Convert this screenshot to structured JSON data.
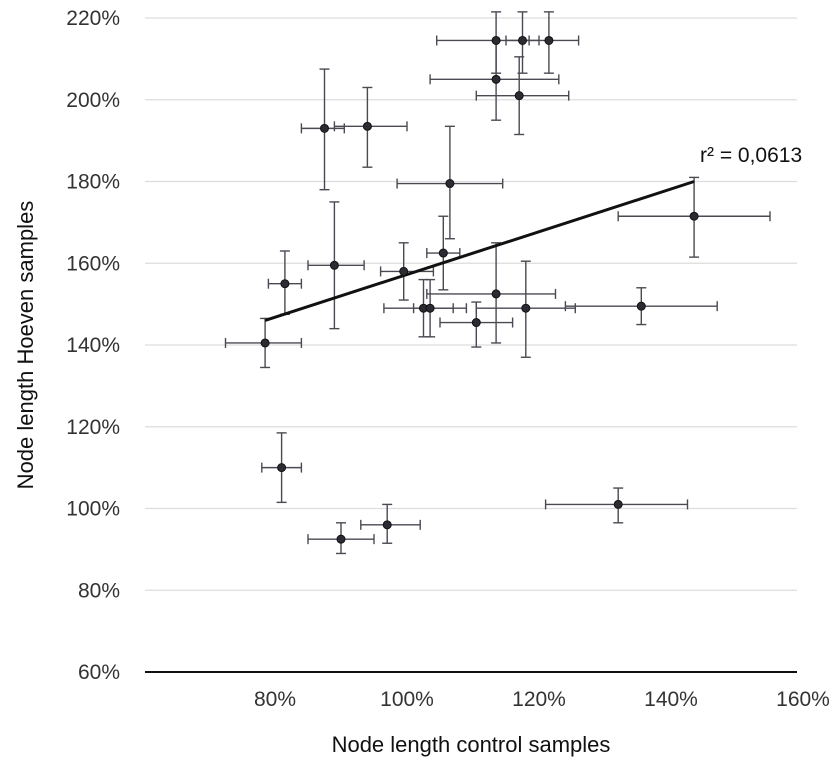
{
  "chart_data": {
    "type": "scatter",
    "title": "",
    "xlabel": "Node length control samples",
    "ylabel": "Node length Hoeven samples",
    "xlim": [
      60,
      160
    ],
    "ylim": [
      60,
      220
    ],
    "x_ticks": [
      {
        "value": 80,
        "label": "80%"
      },
      {
        "value": 100,
        "label": "100%"
      },
      {
        "value": 120,
        "label": "120%"
      },
      {
        "value": 140,
        "label": "140%"
      },
      {
        "value": 160,
        "label": "160%"
      }
    ],
    "y_ticks": [
      {
        "value": 60,
        "label": "60%"
      },
      {
        "value": 80,
        "label": "80%"
      },
      {
        "value": 100,
        "label": "100%"
      },
      {
        "value": 120,
        "label": "120%"
      },
      {
        "value": 140,
        "label": "140%"
      },
      {
        "value": 160,
        "label": "160%"
      },
      {
        "value": 180,
        "label": "180%"
      },
      {
        "value": 200,
        "label": "200%"
      },
      {
        "value": 220,
        "label": "220%"
      }
    ],
    "grid": "horizontal",
    "points": [
      {
        "x": 113.5,
        "y": 214.5,
        "xerr": [
          104.5,
          118.5
        ],
        "yerr": [
          206.5,
          221.5
        ]
      },
      {
        "x": 117.5,
        "y": 214.5,
        "xerr": [
          115,
          120
        ],
        "yerr": [
          206.5,
          221.5
        ]
      },
      {
        "x": 121.5,
        "y": 214.5,
        "xerr": [
          117.5,
          126
        ],
        "yerr": [
          206.5,
          221.5
        ]
      },
      {
        "x": 113.5,
        "y": 205,
        "xerr": [
          103.5,
          123
        ],
        "yerr": [
          195,
          214.5
        ]
      },
      {
        "x": 117,
        "y": 201,
        "xerr": [
          110.5,
          124.5
        ],
        "yerr": [
          191.5,
          210.5
        ]
      },
      {
        "x": 87.5,
        "y": 193,
        "xerr": [
          84,
          90.5
        ],
        "yerr": [
          178,
          207.5
        ]
      },
      {
        "x": 94,
        "y": 193.5,
        "xerr": [
          89,
          100
        ],
        "yerr": [
          183.5,
          203
        ]
      },
      {
        "x": 106.5,
        "y": 179.5,
        "xerr": [
          98.5,
          114.5
        ],
        "yerr": [
          166,
          193.5
        ]
      },
      {
        "x": 143.5,
        "y": 171.5,
        "xerr": [
          132,
          155
        ],
        "yerr": [
          161.5,
          181
        ]
      },
      {
        "x": 105.5,
        "y": 162.5,
        "xerr": [
          103,
          108
        ],
        "yerr": [
          153.5,
          171.5
        ]
      },
      {
        "x": 89,
        "y": 159.5,
        "xerr": [
          85,
          93.5
        ],
        "yerr": [
          144,
          175
        ]
      },
      {
        "x": 99.5,
        "y": 158,
        "xerr": [
          96,
          104
        ],
        "yerr": [
          151,
          165
        ]
      },
      {
        "x": 81.5,
        "y": 155,
        "xerr": [
          79,
          84
        ],
        "yerr": [
          147.5,
          163
        ]
      },
      {
        "x": 113.5,
        "y": 152.5,
        "xerr": [
          103,
          122.5
        ],
        "yerr": [
          140.5,
          165
        ]
      },
      {
        "x": 102.5,
        "y": 149,
        "xerr": [
          96.5,
          109
        ],
        "yerr": [
          142,
          156
        ]
      },
      {
        "x": 103.5,
        "y": 149,
        "xerr": [
          101,
          107
        ],
        "yerr": [
          142,
          156
        ]
      },
      {
        "x": 118,
        "y": 149,
        "xerr": [
          110.5,
          125.5
        ],
        "yerr": [
          137,
          160.5
        ]
      },
      {
        "x": 135.5,
        "y": 149.5,
        "xerr": [
          124,
          147
        ],
        "yerr": [
          145,
          154
        ]
      },
      {
        "x": 110.5,
        "y": 145.5,
        "xerr": [
          105,
          116
        ],
        "yerr": [
          139.5,
          150.5
        ]
      },
      {
        "x": 78.5,
        "y": 140.5,
        "xerr": [
          72.5,
          84
        ],
        "yerr": [
          134.5,
          146.5
        ]
      },
      {
        "x": 81,
        "y": 110,
        "xerr": [
          78,
          84
        ],
        "yerr": [
          101.5,
          118.5
        ]
      },
      {
        "x": 132,
        "y": 101,
        "xerr": [
          121,
          142.5
        ],
        "yerr": [
          96.5,
          105
        ]
      },
      {
        "x": 97,
        "y": 96,
        "xerr": [
          93,
          102
        ],
        "yerr": [
          91.5,
          101
        ]
      },
      {
        "x": 90,
        "y": 92.5,
        "xerr": [
          85,
          95
        ],
        "yerr": [
          89,
          96.5
        ]
      }
    ],
    "regression": {
      "x": [
        78.5,
        143.5
      ],
      "y": [
        146,
        180
      ],
      "label": "r² = 0,0613"
    },
    "colors": {
      "point": "#2b2b33",
      "errorbar": "#4a4a52",
      "grid": "#dddddd",
      "axis": "#111111",
      "trend": "#111111"
    }
  }
}
